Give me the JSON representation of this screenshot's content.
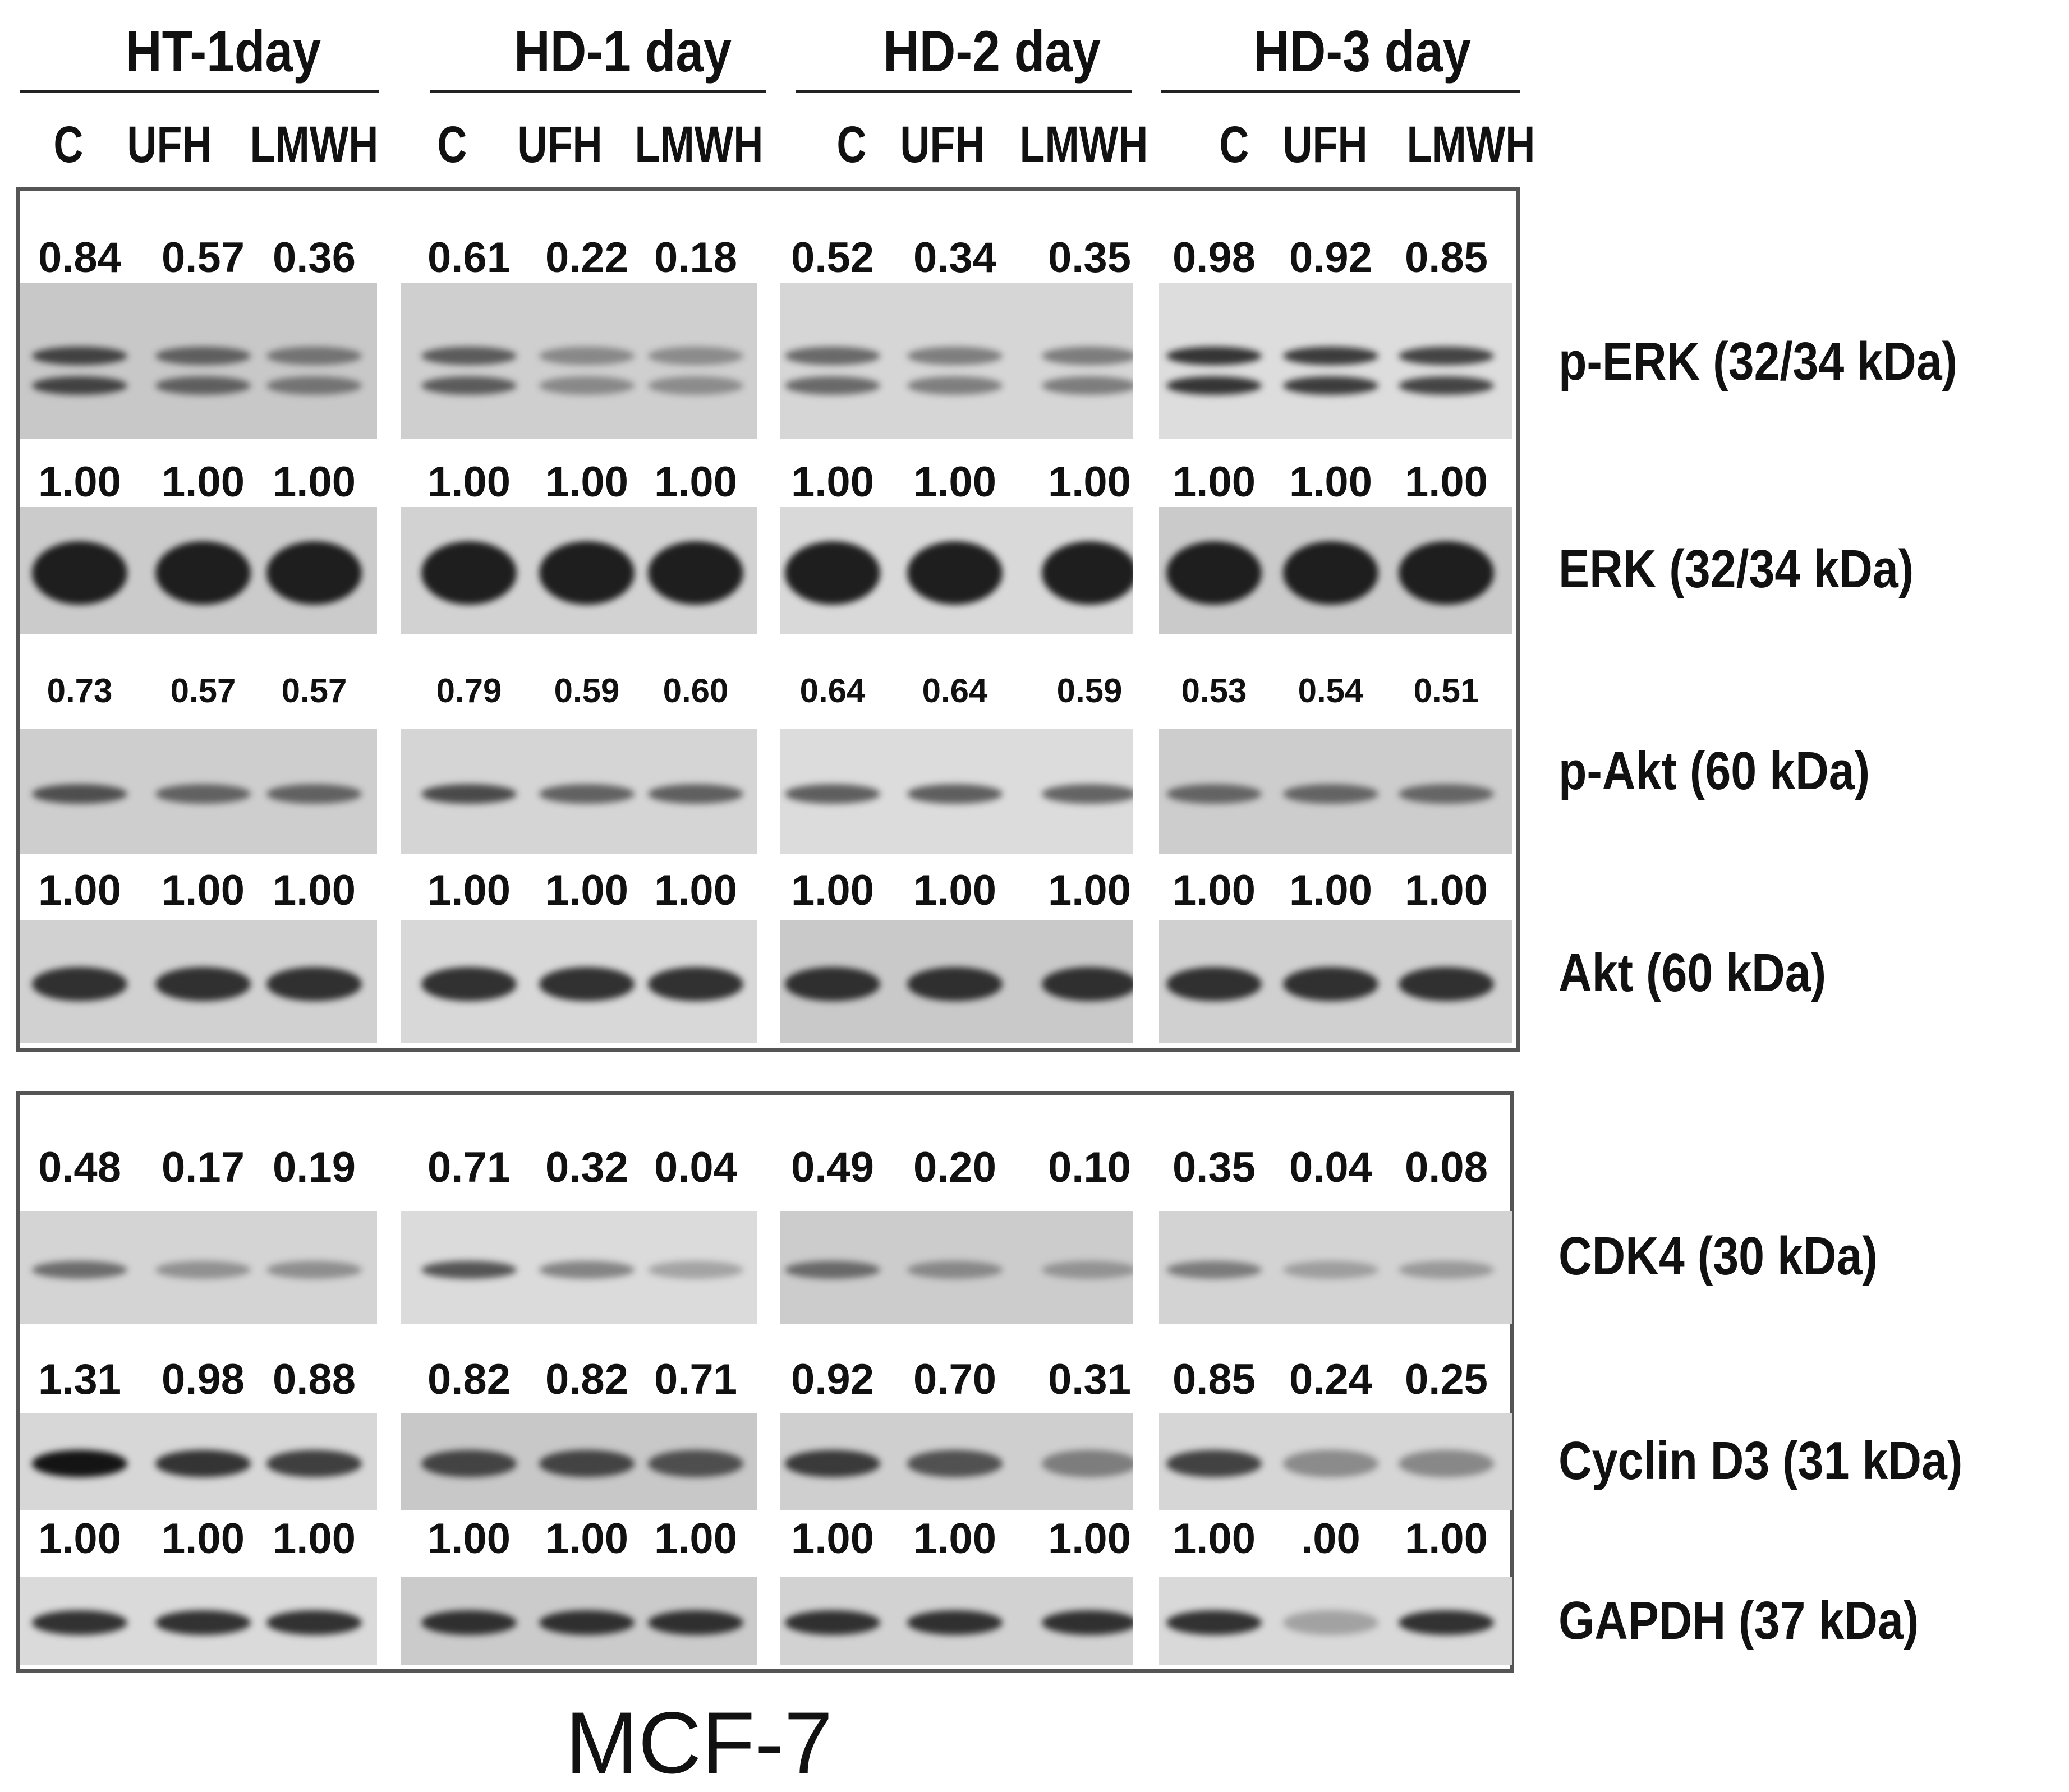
{
  "groups": [
    "HT-1day",
    "HD-1 day",
    "HD-2 day",
    "HD-3 day"
  ],
  "lanes": [
    "C",
    "UFH",
    "LMWH"
  ],
  "targets": [
    {
      "label": "p-ERK (32/34 kDa)",
      "values": [
        "0.84",
        "0.57",
        "0.36",
        "0.61",
        "0.22",
        "0.18",
        "0.52",
        "0.34",
        "0.35",
        "0.98",
        "0.92",
        "0.85"
      ],
      "band": "doublet",
      "panel": 1
    },
    {
      "label": "ERK (32/34 kDa)",
      "values": [
        "1.00",
        "1.00",
        "1.00",
        "1.00",
        "1.00",
        "1.00",
        "1.00",
        "1.00",
        "1.00",
        "1.00",
        "1.00",
        "1.00"
      ],
      "band": "thick",
      "panel": 1
    },
    {
      "label": "p-Akt  (60 kDa)",
      "values": [
        "0.73",
        "0.57",
        "0.57",
        "0.79",
        "0.59",
        "0.60",
        "0.64",
        "0.64",
        "0.59",
        "0.53",
        "0.54",
        "0.51"
      ],
      "band": "thin",
      "panel": 1
    },
    {
      "label": "Akt (60 kDa)",
      "values": [
        "1.00",
        "1.00",
        "1.00",
        "1.00",
        "1.00",
        "1.00",
        "1.00",
        "1.00",
        "1.00",
        "1.00",
        "1.00",
        "1.00"
      ],
      "band": "medium",
      "panel": 1
    },
    {
      "label": "CDK4 (30 kDa)",
      "values": [
        "0.48",
        "0.17",
        "0.19",
        "0.71",
        "0.32",
        "0.04",
        "0.49",
        "0.20",
        "0.10",
        "0.35",
        "0.04",
        "0.08"
      ],
      "band": "thin",
      "panel": 2
    },
    {
      "label": "Cyclin D3 (31 kDa)",
      "values": [
        "1.31",
        "0.98",
        "0.88",
        "0.82",
        "0.82",
        "0.71",
        "0.92",
        "0.70",
        "0.31",
        "0.85",
        "0.24",
        "0.25"
      ],
      "band": "medium",
      "panel": 2
    },
    {
      "label": "GAPDH (37 kDa)",
      "values": [
        "1.00",
        "1.00",
        "1.00",
        "1.00",
        "1.00",
        "1.00",
        "1.00",
        "1.00",
        "1.00",
        "1.00",
        ".00",
        "1.00"
      ],
      "band": "medium",
      "panel": 2
    }
  ],
  "cell_line": "MCF-7",
  "colors": {
    "frame": "#555555",
    "band": "#1a1a1a",
    "blot_bg": "#d8d8d8"
  }
}
